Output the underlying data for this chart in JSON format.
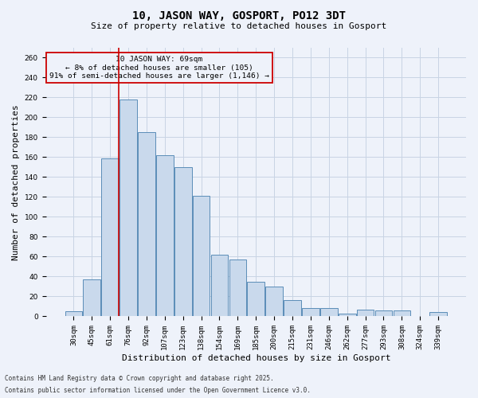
{
  "title": "10, JASON WAY, GOSPORT, PO12 3DT",
  "subtitle": "Size of property relative to detached houses in Gosport",
  "xlabel": "Distribution of detached houses by size in Gosport",
  "ylabel": "Number of detached properties",
  "footnote1": "Contains HM Land Registry data © Crown copyright and database right 2025.",
  "footnote2": "Contains public sector information licensed under the Open Government Licence v3.0.",
  "bar_color": "#c9d9ec",
  "bar_edge_color": "#5b8db8",
  "grid_color": "#c8d4e4",
  "annotation_box_color": "#cc0000",
  "vline_color": "#cc0000",
  "categories": [
    "30sqm",
    "45sqm",
    "61sqm",
    "76sqm",
    "92sqm",
    "107sqm",
    "123sqm",
    "138sqm",
    "154sqm",
    "169sqm",
    "185sqm",
    "200sqm",
    "215sqm",
    "231sqm",
    "246sqm",
    "262sqm",
    "277sqm",
    "293sqm",
    "308sqm",
    "324sqm",
    "339sqm"
  ],
  "values": [
    5,
    37,
    159,
    218,
    185,
    162,
    150,
    121,
    62,
    57,
    35,
    30,
    16,
    8,
    8,
    3,
    7,
    6,
    6,
    0,
    4
  ],
  "vline_x_idx": 2,
  "ylim": [
    0,
    270
  ],
  "yticks": [
    0,
    20,
    40,
    60,
    80,
    100,
    120,
    140,
    160,
    180,
    200,
    220,
    240,
    260
  ],
  "annotation_text": "10 JASON WAY: 69sqm\n← 8% of detached houses are smaller (105)\n91% of semi-detached houses are larger (1,146) →",
  "background_color": "#eef2fa",
  "title_fontsize": 10,
  "subtitle_fontsize": 8,
  "tick_fontsize": 6.5,
  "ylabel_fontsize": 8,
  "xlabel_fontsize": 8,
  "footnote_fontsize": 5.5
}
